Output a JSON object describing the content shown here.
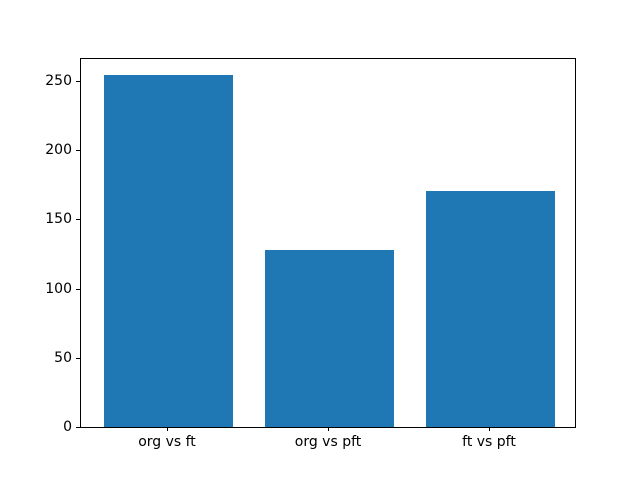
{
  "figure": {
    "background_color": "#ffffff",
    "spine_color": "#000000",
    "tick_color": "#000000"
  },
  "chart_data": {
    "type": "bar",
    "title": "",
    "xlabel": "",
    "ylabel": "",
    "categories": [
      "org vs ft",
      "org vs pft",
      "ft vs pft"
    ],
    "values": [
      254,
      128,
      170
    ],
    "bar_color": "#1f77b4",
    "bar_width_data_units": 0.8,
    "yticks": [
      0,
      50,
      100,
      150,
      200,
      250
    ],
    "ytick_labels": [
      "0",
      "50",
      "100",
      "150",
      "200",
      "250"
    ],
    "ylim": [
      0,
      266.7
    ],
    "xlim": [
      -0.54,
      2.54
    ],
    "grid": false,
    "legend": null
  }
}
